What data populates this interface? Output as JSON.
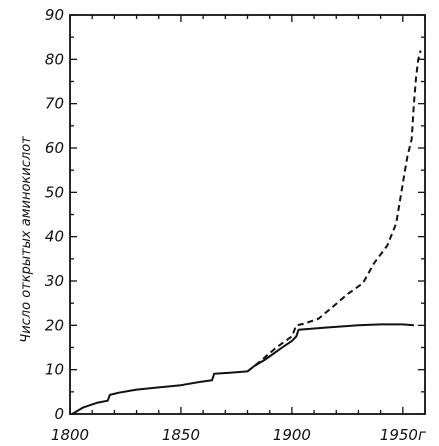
{
  "chart_data": {
    "type": "line",
    "title": "",
    "xlabel": "",
    "ylabel": "Число открытых аминокислот",
    "xlim": [
      1800,
      1960
    ],
    "ylim": [
      0,
      90
    ],
    "grid": false,
    "x_ticks": [
      1800,
      1850,
      1900,
      1950
    ],
    "x_tick_labels": [
      "1800",
      "1850",
      "1900",
      "1950г"
    ],
    "y_ticks": [
      0,
      10,
      20,
      30,
      40,
      50,
      60,
      70,
      80,
      90
    ],
    "y_tick_labels": [
      "0",
      "10",
      "20",
      "30",
      "40",
      "50",
      "60",
      "70",
      "80",
      "90"
    ],
    "series": [
      {
        "style": "solid",
        "color": "#111111",
        "points": [
          [
            1801,
            0
          ],
          [
            1806,
            1.5
          ],
          [
            1812,
            2.5
          ],
          [
            1817,
            3
          ],
          [
            1818,
            4.3
          ],
          [
            1822,
            4.8
          ],
          [
            1830,
            5.5
          ],
          [
            1840,
            6
          ],
          [
            1850,
            6.5
          ],
          [
            1858,
            7.2
          ],
          [
            1864,
            7.6
          ],
          [
            1865,
            9.1
          ],
          [
            1872,
            9.3
          ],
          [
            1880,
            9.6
          ],
          [
            1883,
            10.8
          ],
          [
            1888,
            12.3
          ],
          [
            1895,
            14.8
          ],
          [
            1900,
            16.5
          ],
          [
            1902,
            17.5
          ],
          [
            1903,
            19
          ],
          [
            1915,
            19.5
          ],
          [
            1930,
            20
          ],
          [
            1940,
            20.2
          ],
          [
            1950,
            20.2
          ],
          [
            1955,
            20
          ]
        ]
      },
      {
        "style": "dashed",
        "color": "#111111",
        "points": [
          [
            1880,
            9.6
          ],
          [
            1886,
            12
          ],
          [
            1893,
            15
          ],
          [
            1900,
            17.5
          ],
          [
            1902,
            20
          ],
          [
            1905,
            20.3
          ],
          [
            1912,
            21.5
          ],
          [
            1918,
            24
          ],
          [
            1925,
            27
          ],
          [
            1932,
            29.5
          ],
          [
            1937,
            34
          ],
          [
            1943,
            38
          ],
          [
            1947,
            43
          ],
          [
            1950,
            52
          ],
          [
            1952,
            58
          ],
          [
            1954,
            62
          ],
          [
            1955,
            70
          ],
          [
            1956,
            76
          ],
          [
            1957,
            80
          ],
          [
            1958,
            82
          ]
        ]
      }
    ]
  }
}
